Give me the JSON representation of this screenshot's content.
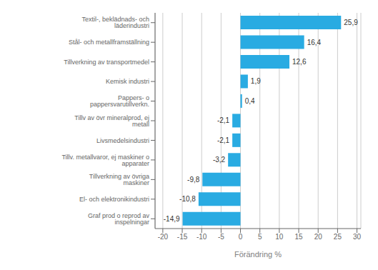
{
  "chart_data": {
    "type": "bar",
    "orientation": "horizontal",
    "categories": [
      "Graf prod o reprod av inspelningar",
      "El- och elektronikindustri",
      "Tillverkning av övriga maskiner",
      "Tillv. metallvaror, ej maskiner o apparater",
      "Livsmedelsindustri",
      "Tillv av övr mineralprod, ej metall",
      "Pappers- o pappersvarutillverkn.",
      "Kemisk industri",
      "Tillverkning av transportmedel",
      "Stål- och metallframställning",
      "Textil-, beklädnads- och läderindustri"
    ],
    "values": [
      -14.9,
      -10.8,
      -9.8,
      -3.2,
      -2.1,
      -2.1,
      0.4,
      1.9,
      12.6,
      16.4,
      25.9
    ],
    "value_labels": [
      "-14,9",
      "-10,8",
      "-9,8",
      "-3,2",
      "-2,1",
      "-2,1",
      "0,4",
      "1,9",
      "12,6",
      "16,4",
      "25,9"
    ],
    "color": "#29abe2",
    "xlabel": "Förändring %",
    "xlim": [
      -22,
      31
    ],
    "xticks": [
      -20,
      -15,
      -10,
      -5,
      0,
      5,
      10,
      15,
      20,
      25,
      30
    ],
    "grid": true,
    "data_labels": true
  }
}
